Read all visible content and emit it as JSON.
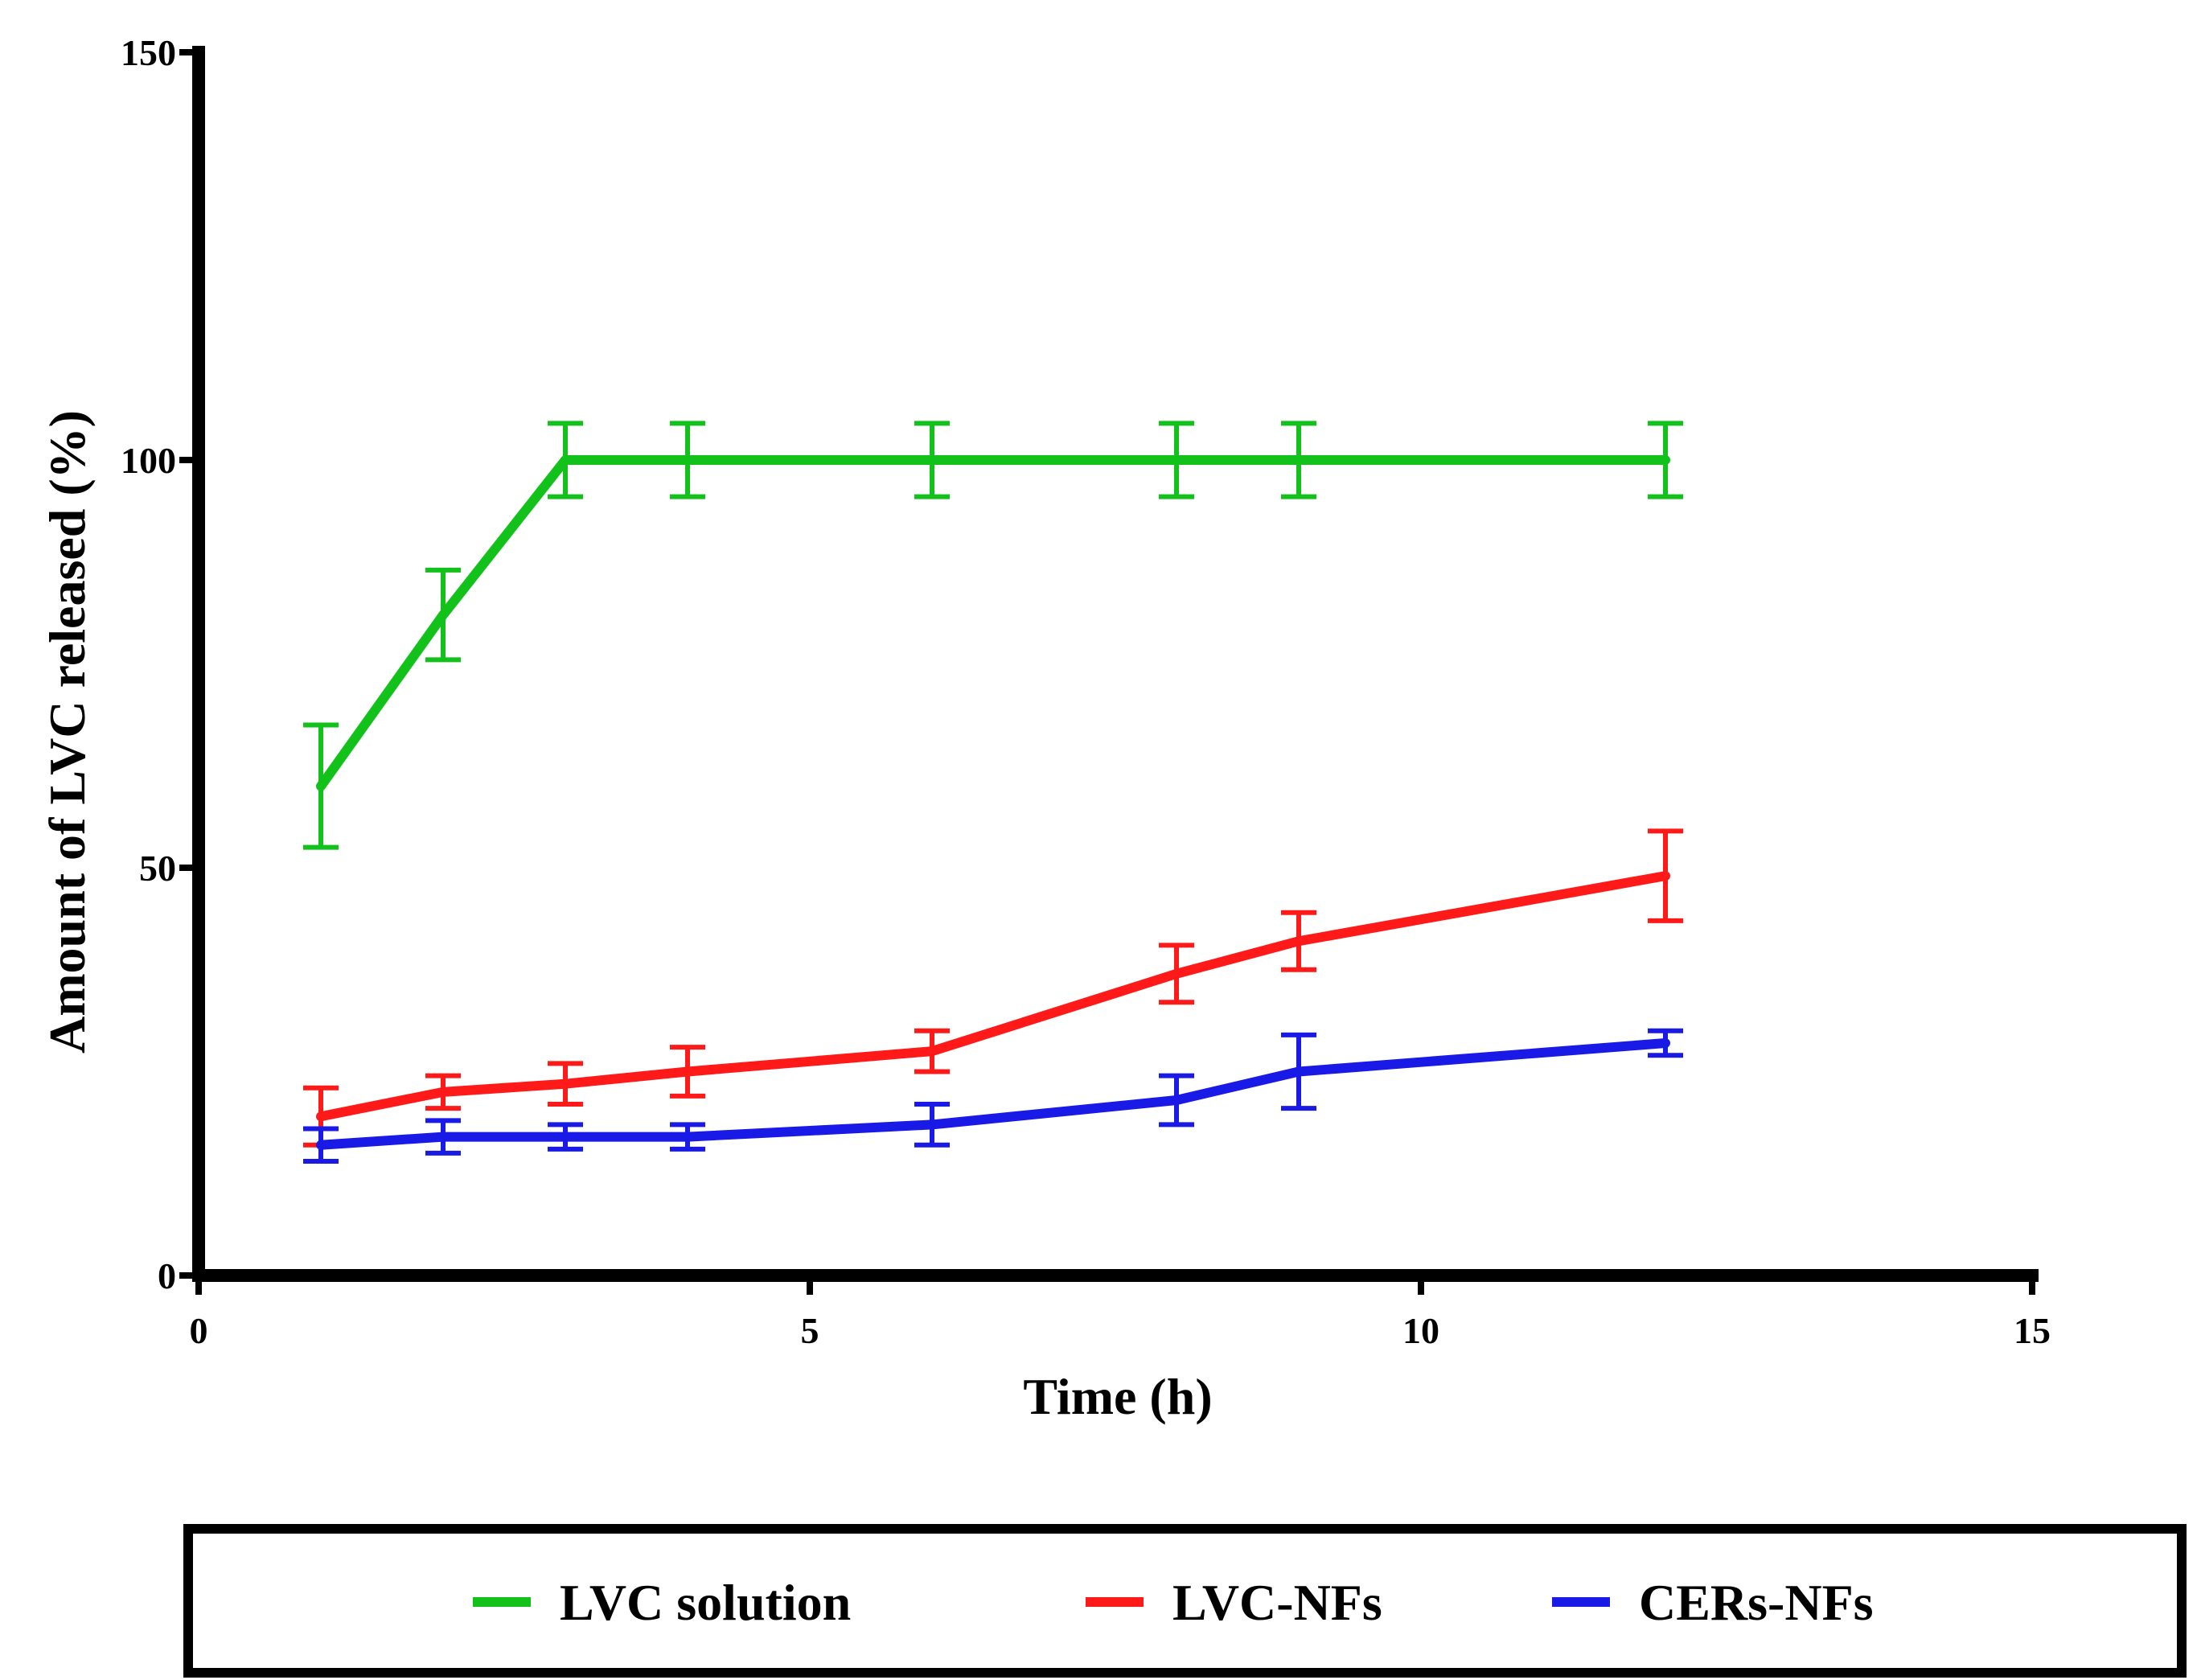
{
  "chart_data": {
    "type": "line",
    "title": "",
    "xlabel": "Time (h)",
    "ylabel": "Amount of LVC released (%)",
    "xlim": [
      0,
      15
    ],
    "ylim": [
      0,
      150
    ],
    "xticks": [
      0,
      5,
      10,
      15
    ],
    "yticks": [
      0,
      50,
      100,
      150
    ],
    "xtick_labels": [
      "0",
      "5",
      "10",
      "15"
    ],
    "ytick_labels": [
      "0",
      "50",
      "100",
      "150"
    ],
    "grid": false,
    "legend_position": "bottom",
    "x": [
      1,
      2,
      3,
      4,
      6,
      8,
      9,
      12
    ],
    "series": [
      {
        "name": "LVC solution",
        "color": "#12c21b",
        "values": [
          60,
          81,
          100,
          100,
          100,
          100,
          100,
          100
        ],
        "errors": [
          7.5,
          5.5,
          4.5,
          4.5,
          4.5,
          4.5,
          4.5,
          4.5
        ]
      },
      {
        "name": "LVC-NFs",
        "color": "#ff1a1a",
        "values": [
          19.5,
          22.5,
          23.5,
          25,
          27.5,
          37,
          41,
          49
        ],
        "errors": [
          3.5,
          2,
          2.5,
          3,
          2.5,
          3.5,
          3.5,
          5.5
        ]
      },
      {
        "name": "CERs-NFs",
        "color": "#1a1ae6",
        "values": [
          16,
          17,
          17,
          17,
          18.5,
          21.5,
          25,
          28.5
        ],
        "errors": [
          2,
          2,
          1.5,
          1.5,
          2.5,
          3,
          4.5,
          1.5
        ]
      }
    ]
  }
}
